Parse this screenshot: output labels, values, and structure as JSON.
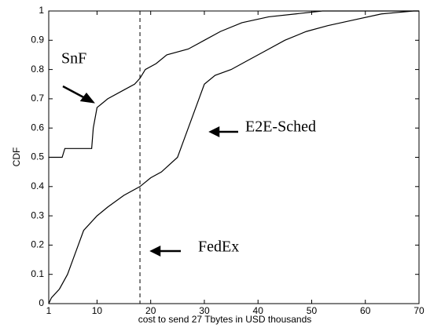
{
  "chart_data": {
    "type": "line",
    "xlabel": "cost to send 27 Tbytes in USD thousands",
    "ylabel": "CDF",
    "xlim": [
      1,
      70
    ],
    "ylim": [
      0,
      1
    ],
    "xticks": [
      1,
      10,
      20,
      30,
      40,
      50,
      60,
      70
    ],
    "yticks": [
      0,
      0.1,
      0.2,
      0.3,
      0.4,
      0.5,
      0.6,
      0.7,
      0.8,
      0.9,
      1
    ],
    "vline": 18,
    "series": [
      {
        "color": "#000000",
        "x": [
          1,
          3.5,
          4,
          9,
          9.3,
          10,
          12,
          15,
          17,
          18,
          19,
          21,
          23,
          27,
          30,
          33,
          37,
          42,
          47,
          52,
          70
        ],
        "values": [
          0.5,
          0.5,
          0.53,
          0.53,
          0.6,
          0.67,
          0.7,
          0.73,
          0.75,
          0.77,
          0.8,
          0.82,
          0.85,
          0.87,
          0.9,
          0.93,
          0.96,
          0.98,
          0.99,
          1,
          1
        ]
      },
      {
        "color": "#000000",
        "x": [
          1,
          1.5,
          3,
          4.5,
          5.5,
          6.5,
          7.5,
          10,
          12,
          15,
          18,
          20,
          22,
          25,
          26,
          27,
          28,
          29,
          30,
          32,
          35,
          38,
          41,
          45,
          49,
          53,
          58,
          63,
          69,
          70
        ],
        "values": [
          0,
          0.02,
          0.05,
          0.1,
          0.15,
          0.2,
          0.25,
          0.3,
          0.33,
          0.37,
          0.4,
          0.43,
          0.45,
          0.5,
          0.55,
          0.6,
          0.65,
          0.7,
          0.75,
          0.78,
          0.8,
          0.83,
          0.86,
          0.9,
          0.93,
          0.95,
          0.97,
          0.99,
          1,
          1
        ]
      }
    ],
    "annotations": [
      "SnF",
      "E2E-Sched",
      "FedEx"
    ]
  }
}
